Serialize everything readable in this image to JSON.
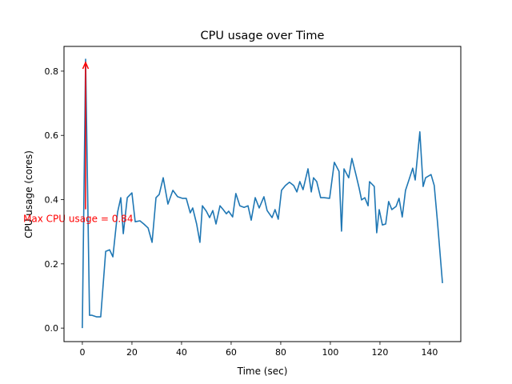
{
  "chart_data": {
    "type": "line",
    "title": "CPU usage over Time",
    "xlabel": "Time (sec)",
    "ylabel": "CPU usage (cores)",
    "xlim": [
      -7.4,
      152.6
    ],
    "ylim": [
      -0.042,
      0.877
    ],
    "xticks": [
      0,
      20,
      40,
      60,
      80,
      100,
      120,
      140
    ],
    "yticks": [
      0.0,
      0.2,
      0.4,
      0.6,
      0.8
    ],
    "ytick_labels": [
      "0.0",
      "0.2",
      "0.4",
      "0.6",
      "0.8"
    ],
    "grid": false,
    "series": [
      {
        "name": "CPU usage",
        "color": "#1f77b4",
        "x": [
          0,
          1.3,
          2.9,
          3.9,
          5.8,
          7.4,
          9.4,
          11.0,
          12.3,
          14.2,
          15.5,
          16.5,
          18.1,
          20.0,
          21.3,
          23.2,
          24.8,
          26.5,
          28.1,
          29.7,
          31.0,
          32.6,
          34.5,
          36.5,
          38.4,
          40.3,
          41.9,
          43.5,
          44.5,
          46.1,
          47.4,
          48.4,
          50.0,
          51.3,
          52.6,
          53.9,
          55.5,
          56.8,
          58.1,
          59.0,
          60.6,
          61.9,
          63.5,
          65.2,
          66.8,
          68.1,
          69.7,
          71.3,
          73.2,
          74.5,
          76.5,
          77.7,
          79.0,
          80.3,
          81.9,
          83.5,
          85.2,
          86.5,
          87.7,
          89.0,
          91.0,
          92.3,
          93.2,
          94.5,
          96.1,
          97.4,
          99.7,
          101.6,
          103.5,
          104.5,
          105.5,
          107.4,
          108.7,
          110.3,
          111.6,
          112.6,
          113.9,
          115.2,
          115.8,
          117.7,
          118.7,
          119.7,
          121.0,
          122.3,
          123.5,
          124.8,
          126.5,
          127.7,
          129.0,
          130.3,
          131.9,
          133.2,
          134.2,
          136.1,
          137.4,
          138.4,
          140.6,
          141.9,
          143.2,
          145.2
        ],
        "y": [
          0,
          0.837,
          0.04,
          0.04,
          0.035,
          0.035,
          0.239,
          0.244,
          0.222,
          0.361,
          0.406,
          0.294,
          0.406,
          0.421,
          0.331,
          0.334,
          0.324,
          0.312,
          0.267,
          0.406,
          0.416,
          0.468,
          0.386,
          0.429,
          0.409,
          0.404,
          0.404,
          0.359,
          0.374,
          0.324,
          0.267,
          0.381,
          0.364,
          0.344,
          0.366,
          0.324,
          0.381,
          0.369,
          0.356,
          0.364,
          0.346,
          0.419,
          0.381,
          0.376,
          0.381,
          0.336,
          0.406,
          0.374,
          0.409,
          0.366,
          0.344,
          0.369,
          0.339,
          0.429,
          0.444,
          0.454,
          0.444,
          0.424,
          0.456,
          0.431,
          0.496,
          0.424,
          0.468,
          0.456,
          0.406,
          0.406,
          0.404,
          0.516,
          0.488,
          0.302,
          0.496,
          0.468,
          0.528,
          0.478,
          0.436,
          0.399,
          0.406,
          0.381,
          0.456,
          0.441,
          0.297,
          0.369,
          0.321,
          0.324,
          0.394,
          0.369,
          0.379,
          0.404,
          0.346,
          0.429,
          0.466,
          0.498,
          0.461,
          0.611,
          0.441,
          0.468,
          0.478,
          0.444,
          0.329,
          0.14
        ]
      }
    ],
    "annotation": {
      "text": "Max CPU usage = 0.84",
      "color": "#ff0000",
      "point": [
        1.3,
        0.827
      ],
      "text_point": [
        1.3,
        0.37
      ]
    }
  }
}
